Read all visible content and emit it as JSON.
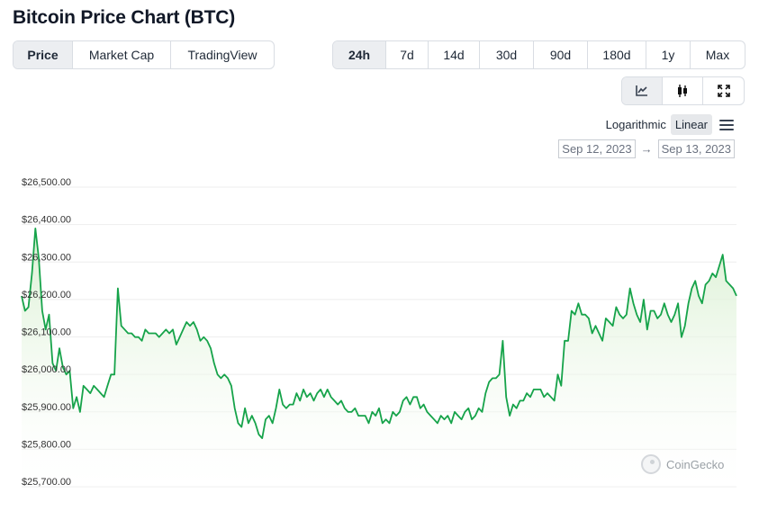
{
  "page_title": "Bitcoin Price Chart (BTC)",
  "view_tabs": [
    "Price",
    "Market Cap",
    "TradingView"
  ],
  "active_view": "Price",
  "range_tabs": [
    "24h",
    "7d",
    "14d",
    "30d",
    "90d",
    "180d",
    "1y",
    "Max"
  ],
  "active_range": "24h",
  "chart_type_buttons": [
    "line-chart-icon",
    "candlestick-icon",
    "fullscreen-icon"
  ],
  "active_chart_type": "line-chart-icon",
  "scale": {
    "log_label": "Logarithmic",
    "linear_label": "Linear",
    "active": "Linear"
  },
  "date_range": {
    "from": "Sep 12, 2023",
    "arrow": "→",
    "to": "Sep 13, 2023"
  },
  "watermark": "CoinGecko",
  "colors": {
    "line": "#16a34a",
    "fill_top": "#d7efcf",
    "grid": "#eeeeee",
    "active_bg": "#eceef1"
  },
  "chart_data": {
    "type": "area",
    "title": "Bitcoin Price Chart (BTC)",
    "y_tick_labels": [
      "$26,500.00",
      "$26,400.00",
      "$26,300.00",
      "$26,200.00",
      "$26,100.00",
      "$26,000.00",
      "$25,900.00",
      "$25,800.00",
      "$25,700.00"
    ],
    "y_ticks": [
      26500,
      26400,
      26300,
      26200,
      26100,
      26000,
      25900,
      25800,
      25700
    ],
    "ylim": [
      25700,
      26500
    ],
    "grid": true,
    "series": [
      {
        "values": [
          26200,
          26160,
          26170,
          26260,
          26380,
          26300,
          26160,
          26110,
          26150,
          26020,
          26000,
          26060,
          26010,
          25990,
          26000,
          25900,
          25930,
          25890,
          25960,
          25950,
          25940,
          25960,
          25950,
          25940,
          25930,
          25960,
          25990,
          25990,
          26220,
          26120,
          26110,
          26100,
          26100,
          26090,
          26090,
          26080,
          26110,
          26100,
          26100,
          26100,
          26090,
          26100,
          26110,
          26100,
          26110,
          26070,
          26090,
          26110,
          26130,
          26120,
          26130,
          26110,
          26080,
          26090,
          26080,
          26060,
          26020,
          25990,
          25980,
          25990,
          25980,
          25960,
          25900,
          25860,
          25850,
          25900,
          25860,
          25880,
          25860,
          25830,
          25820,
          25870,
          25880,
          25860,
          25900,
          25950,
          25910,
          25900,
          25910,
          25910,
          25940,
          25920,
          25950,
          25930,
          25940,
          25920,
          25940,
          25950,
          25930,
          25950,
          25930,
          25920,
          25910,
          25920,
          25900,
          25890,
          25890,
          25900,
          25880,
          25880,
          25880,
          25860,
          25890,
          25880,
          25900,
          25860,
          25870,
          25860,
          25890,
          25880,
          25890,
          25920,
          25930,
          25910,
          25930,
          25930,
          25900,
          25910,
          25890,
          25880,
          25870,
          25860,
          25880,
          25870,
          25880,
          25860,
          25890,
          25880,
          25870,
          25890,
          25900,
          25870,
          25880,
          25900,
          25890,
          25940,
          25970,
          25980,
          25980,
          25990,
          26080,
          25930,
          25880,
          25910,
          25900,
          25920,
          25920,
          25940,
          25930,
          25950,
          25950,
          25950,
          25930,
          25940,
          25930,
          25920,
          25990,
          25960,
          26080,
          26080,
          26160,
          26150,
          26180,
          26150,
          26150,
          26140,
          26100,
          26120,
          26100,
          26080,
          26140,
          26130,
          26120,
          26170,
          26150,
          26140,
          26150,
          26220,
          26180,
          26150,
          26130,
          26190,
          26110,
          26160,
          26160,
          26140,
          26150,
          26180,
          26150,
          26130,
          26150,
          26180,
          26090,
          26120,
          26180,
          26220,
          26240,
          26200,
          26180,
          26230,
          26240,
          26260,
          26250,
          26280,
          26310,
          26240,
          26230,
          26220,
          26200
        ]
      }
    ]
  }
}
